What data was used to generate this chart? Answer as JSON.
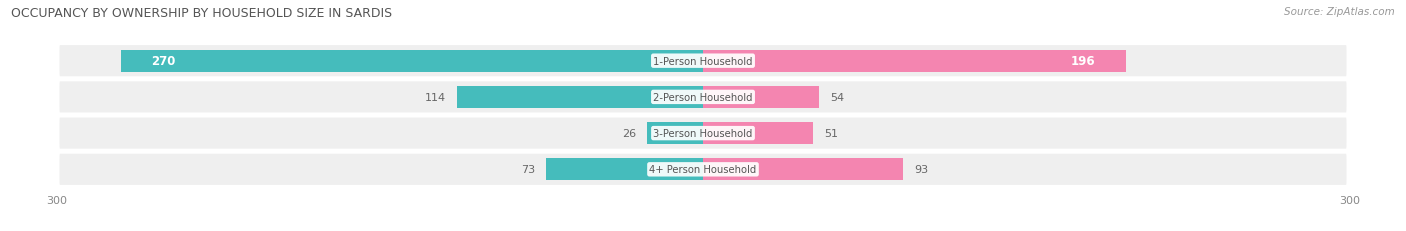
{
  "title": "OCCUPANCY BY OWNERSHIP BY HOUSEHOLD SIZE IN SARDIS",
  "source": "Source: ZipAtlas.com",
  "categories": [
    "1-Person Household",
    "2-Person Household",
    "3-Person Household",
    "4+ Person Household"
  ],
  "owner_values": [
    270,
    114,
    26,
    73
  ],
  "renter_values": [
    196,
    54,
    51,
    93
  ],
  "owner_color": "#45BCBC",
  "renter_color": "#F485B0",
  "row_bg_color": "#EFEFEF",
  "axis_max": 300,
  "figsize": [
    14.06,
    2.32
  ],
  "dpi": 100,
  "title_color": "#555555",
  "source_color": "#999999",
  "value_color_inside": "#FFFFFF",
  "value_color_outside": "#666666",
  "label_color": "#555555"
}
